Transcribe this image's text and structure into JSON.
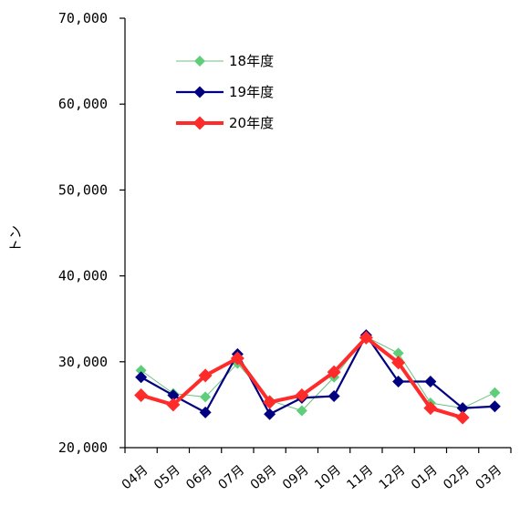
{
  "chart_data": {
    "type": "line",
    "title": "",
    "xlabel": "",
    "ylabel": "トン",
    "ylim": [
      20000,
      70000
    ],
    "yticks": [
      20000,
      30000,
      40000,
      50000,
      60000,
      70000
    ],
    "ytick_labels": [
      "20,000",
      "30,000",
      "40,000",
      "50,000",
      "60,000",
      "70,000"
    ],
    "categories": [
      "04月",
      "05月",
      "06月",
      "07月",
      "08月",
      "09月",
      "10月",
      "11月",
      "12月",
      "01月",
      "02月",
      "03月"
    ],
    "grid": false,
    "legend_position": "top-left",
    "series": [
      {
        "name": "18年度",
        "color": "#6cc07f",
        "marker_color": "#5ecf78",
        "marker": "diamond",
        "width": "thin",
        "values": [
          29000,
          26300,
          25900,
          29800,
          25500,
          24300,
          28200,
          32900,
          31000,
          25200,
          24600,
          26400
        ]
      },
      {
        "name": "19年度",
        "color": "#000080",
        "marker_color": "#000080",
        "marker": "diamond",
        "width": "medium",
        "values": [
          28200,
          26100,
          24100,
          30900,
          23900,
          25800,
          26000,
          33100,
          27700,
          27700,
          24600,
          24800
        ]
      },
      {
        "name": "20年度",
        "color": "#ff2a2a",
        "marker_color": "#ff2a2a",
        "marker": "diamond",
        "width": "thick",
        "values": [
          26100,
          25000,
          28400,
          30400,
          25300,
          26100,
          28800,
          32800,
          29900,
          24600,
          23500,
          null
        ]
      }
    ]
  }
}
